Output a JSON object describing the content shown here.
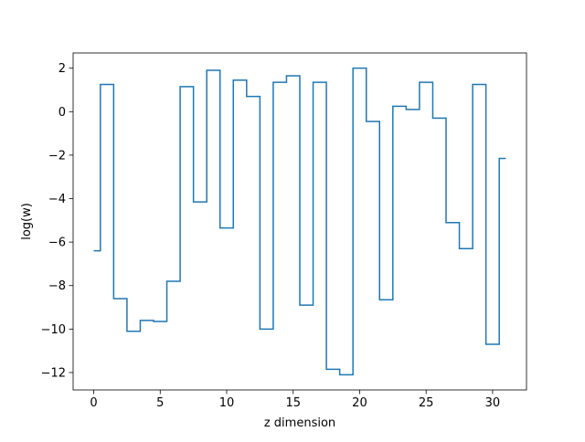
{
  "chart_data": {
    "type": "line",
    "drawstyle": "steps-mid",
    "title": "",
    "xlabel": "z dimension",
    "ylabel": "log(w)",
    "xlim": [
      -1.55,
      32.55
    ],
    "ylim": [
      -12.8,
      2.7
    ],
    "xticks": [
      0,
      5,
      10,
      15,
      20,
      25,
      30
    ],
    "yticks": [
      -12,
      -10,
      -8,
      -6,
      -4,
      -2,
      0,
      2
    ],
    "grid": false,
    "legend": "none",
    "series": [
      {
        "color": "#1f77b4",
        "x": [
          0,
          1,
          2,
          3,
          4,
          5,
          6,
          7,
          8,
          9,
          10,
          11,
          12,
          13,
          14,
          15,
          16,
          17,
          18,
          19,
          20,
          21,
          22,
          23,
          24,
          25,
          26,
          27,
          28,
          29,
          30,
          31
        ],
        "values": [
          -6.4,
          1.25,
          -8.6,
          -10.1,
          -9.6,
          -9.65,
          -7.8,
          1.15,
          -4.15,
          1.9,
          -5.35,
          1.45,
          0.7,
          -10.0,
          1.35,
          1.65,
          -8.9,
          1.35,
          -11.85,
          -12.1,
          2.0,
          -0.45,
          -8.65,
          0.25,
          0.1,
          1.35,
          -0.3,
          -5.1,
          -6.3,
          1.25,
          -10.7,
          -2.15
        ]
      }
    ]
  }
}
